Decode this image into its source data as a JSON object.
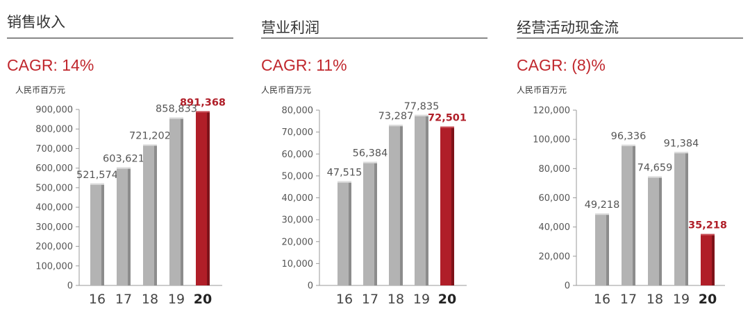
{
  "colors": {
    "accent": "#c0272d",
    "bar_face": "#b3b3b3",
    "bar_side": "#8c8c8c",
    "bar_top": "#dcdcdc",
    "highlight_face": "#b01e28",
    "highlight_side": "#7e1219",
    "highlight_top": "#c85058"
  },
  "charts": [
    {
      "title": "销售收入",
      "cagr": "CAGR: 14%",
      "unit": "人民币百万元",
      "y_ticks": [
        "900,000",
        "800,000",
        "700,000",
        "600,000",
        "500,000",
        "400,000",
        "300,000",
        "200,000",
        "100,000",
        "0"
      ],
      "categories": [
        "16",
        "17",
        "18",
        "19",
        "20"
      ],
      "value_labels": [
        "521,574",
        "603,621",
        "721,202",
        "858,833",
        "891,368"
      ]
    },
    {
      "title": "营业利润",
      "cagr": "CAGR: 11%",
      "unit": "人民币百万元",
      "y_ticks": [
        "80,000",
        "70,000",
        "60,000",
        "50,000",
        "40,000",
        "30,000",
        "20,000",
        "10,000",
        "0"
      ],
      "categories": [
        "16",
        "17",
        "18",
        "19",
        "20"
      ],
      "value_labels": [
        "47,515",
        "56,384",
        "73,287",
        "77,835",
        "72,501"
      ]
    },
    {
      "title": "经营活动现金流",
      "cagr": "CAGR: (8)%",
      "unit": "人民币百万元",
      "y_ticks": [
        "120,000",
        "100,000",
        "80,000",
        "60,000",
        "40,000",
        "20,000",
        "0"
      ],
      "categories": [
        "16",
        "17",
        "18",
        "19",
        "20"
      ],
      "value_labels": [
        "49,218",
        "96,336",
        "74,659",
        "91,384",
        "35,218"
      ]
    }
  ],
  "chart_data": [
    {
      "type": "bar",
      "title": "销售收入",
      "ylabel": "人民币百万元",
      "categories": [
        "16",
        "17",
        "18",
        "19",
        "20"
      ],
      "values": [
        521574,
        603621,
        721202,
        858833,
        891368
      ],
      "ylim": [
        0,
        900000
      ],
      "highlight_index": 4,
      "grid": false
    },
    {
      "type": "bar",
      "title": "营业利润",
      "ylabel": "人民币百万元",
      "categories": [
        "16",
        "17",
        "18",
        "19",
        "20"
      ],
      "values": [
        47515,
        56384,
        73287,
        77835,
        72501
      ],
      "ylim": [
        0,
        80000
      ],
      "highlight_index": 4,
      "grid": false
    },
    {
      "type": "bar",
      "title": "经营活动现金流",
      "ylabel": "人民币百万元",
      "categories": [
        "16",
        "17",
        "18",
        "19",
        "20"
      ],
      "values": [
        49218,
        96336,
        74659,
        91384,
        35218
      ],
      "ylim": [
        0,
        120000
      ],
      "highlight_index": 4,
      "grid": false
    }
  ]
}
